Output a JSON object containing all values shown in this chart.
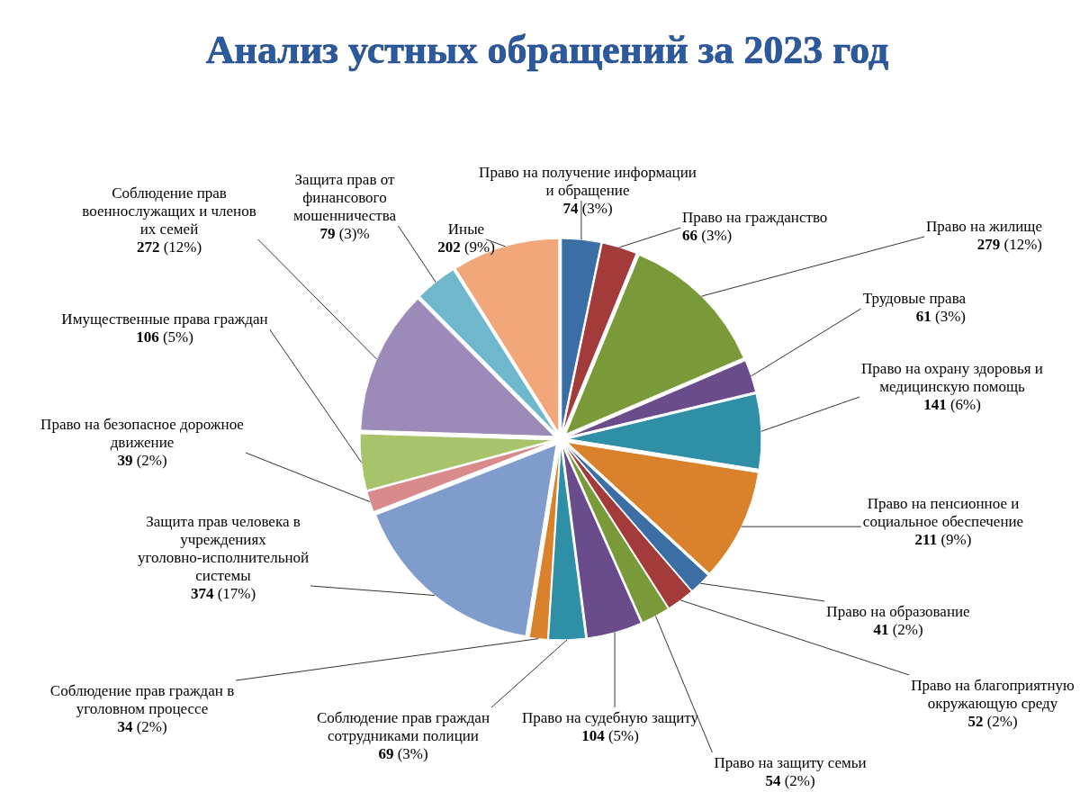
{
  "chart_data": {
    "type": "pie",
    "title": "Анализ устных обращений за 2023 год",
    "categories": [
      "Право на получение информации и обращение",
      "Право на гражданство",
      "Право на жилище",
      "Трудовые права",
      "Право на охрану здоровья и медицинскую помощь",
      "Право на пенсионное и социальное обеспечение",
      "Право на образование",
      "Право на благоприятную окружающую среду",
      "Право на защиту семьи",
      "Право на судебную защиту",
      "Соблюдение прав граждан сотрудниками полиции",
      "Соблюдение прав граждан в уголовном процессе",
      "Защита прав человека в учреждениях уголовно-исполнительной системы",
      "Право на безопасное дорожное движение",
      "Имущественные права граждан",
      "Соблюдение прав военнослужащих и членов их семей",
      "Защита прав от финансового мошенничества",
      "Иные"
    ],
    "values": [
      74,
      66,
      279,
      61,
      141,
      211,
      41,
      52,
      54,
      104,
      69,
      34,
      374,
      39,
      106,
      272,
      79,
      202
    ],
    "value_labels": [
      "74 (3%)",
      "66 (3%)",
      "279 (12%)",
      "61 (3%)",
      "141 (6%)",
      "211 (9%)",
      "41 (2%)",
      "52 (2%)",
      "54 (2%)",
      "104 (5%)",
      "69 (3%)",
      "34 (2%)",
      "374 (17%)",
      "39 (2%)",
      "106 (5%)",
      "272 (12%)",
      "79 (3)%",
      "202 (9%)"
    ],
    "colors": [
      "#3a6ea5",
      "#a33b3b",
      "#7a9a3a",
      "#6a4c8c",
      "#2f8fa6",
      "#d9822b",
      "#3a6ea5",
      "#a33b3b",
      "#7a9a3a",
      "#6a4c8c",
      "#2f8fa6",
      "#d9822b",
      "#7f9ccc",
      "#d98a8a",
      "#a8c46a",
      "#9c8ab8",
      "#6fb8cc",
      "#f2a77a"
    ]
  }
}
